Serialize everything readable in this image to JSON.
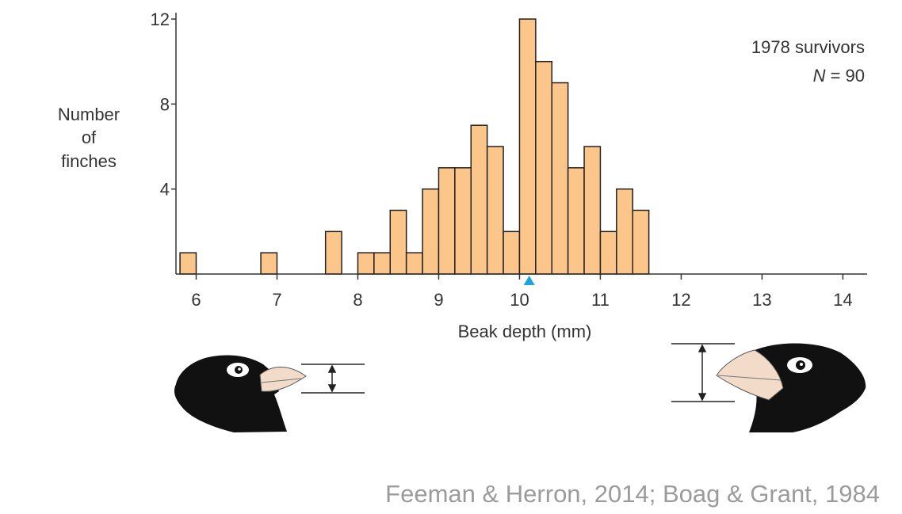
{
  "chart_data": {
    "type": "bar",
    "title": "",
    "xlabel": "Beak depth (mm)",
    "ylabel_lines": [
      "Number",
      "of",
      "finches"
    ],
    "xlim": [
      5.75,
      14.3
    ],
    "ylim": [
      0,
      12.3
    ],
    "x_ticks": [
      6,
      7,
      8,
      9,
      10,
      11,
      12,
      13,
      14
    ],
    "y_ticks": [
      4,
      8,
      12
    ],
    "bin_width": 0.2,
    "bins": [
      {
        "start": 5.8,
        "count": 1
      },
      {
        "start": 6.8,
        "count": 1
      },
      {
        "start": 7.6,
        "count": 2
      },
      {
        "start": 8.0,
        "count": 1
      },
      {
        "start": 8.2,
        "count": 1
      },
      {
        "start": 8.4,
        "count": 3
      },
      {
        "start": 8.6,
        "count": 1
      },
      {
        "start": 8.8,
        "count": 4
      },
      {
        "start": 9.0,
        "count": 5
      },
      {
        "start": 9.2,
        "count": 5
      },
      {
        "start": 9.4,
        "count": 7
      },
      {
        "start": 9.6,
        "count": 6
      },
      {
        "start": 9.8,
        "count": 2
      },
      {
        "start": 10.0,
        "count": 12
      },
      {
        "start": 10.2,
        "count": 10
      },
      {
        "start": 10.4,
        "count": 9
      },
      {
        "start": 10.6,
        "count": 5
      },
      {
        "start": 10.8,
        "count": 6
      },
      {
        "start": 11.0,
        "count": 2
      },
      {
        "start": 11.2,
        "count": 4
      },
      {
        "start": 11.4,
        "count": 3
      }
    ],
    "mean_marker_x": 10.12,
    "annotation": {
      "line1": "1978 survivors",
      "n_label": "N",
      "n_value": "= 90"
    },
    "colors": {
      "bar_fill": "#fcc58a",
      "bar_stroke": "#222222",
      "mean_marker": "#1aa3dc",
      "axis": "#333333"
    },
    "grid": false,
    "legend": "none"
  },
  "illustrations": {
    "left": {
      "icon": "small-beak-finch-head-icon",
      "measure_icon": "double-arrow-icon"
    },
    "right": {
      "icon": "large-beak-finch-head-icon",
      "measure_icon": "double-arrow-icon"
    }
  },
  "citation": "Feeman & Herron, 2014; Boag & Grant, 1984"
}
